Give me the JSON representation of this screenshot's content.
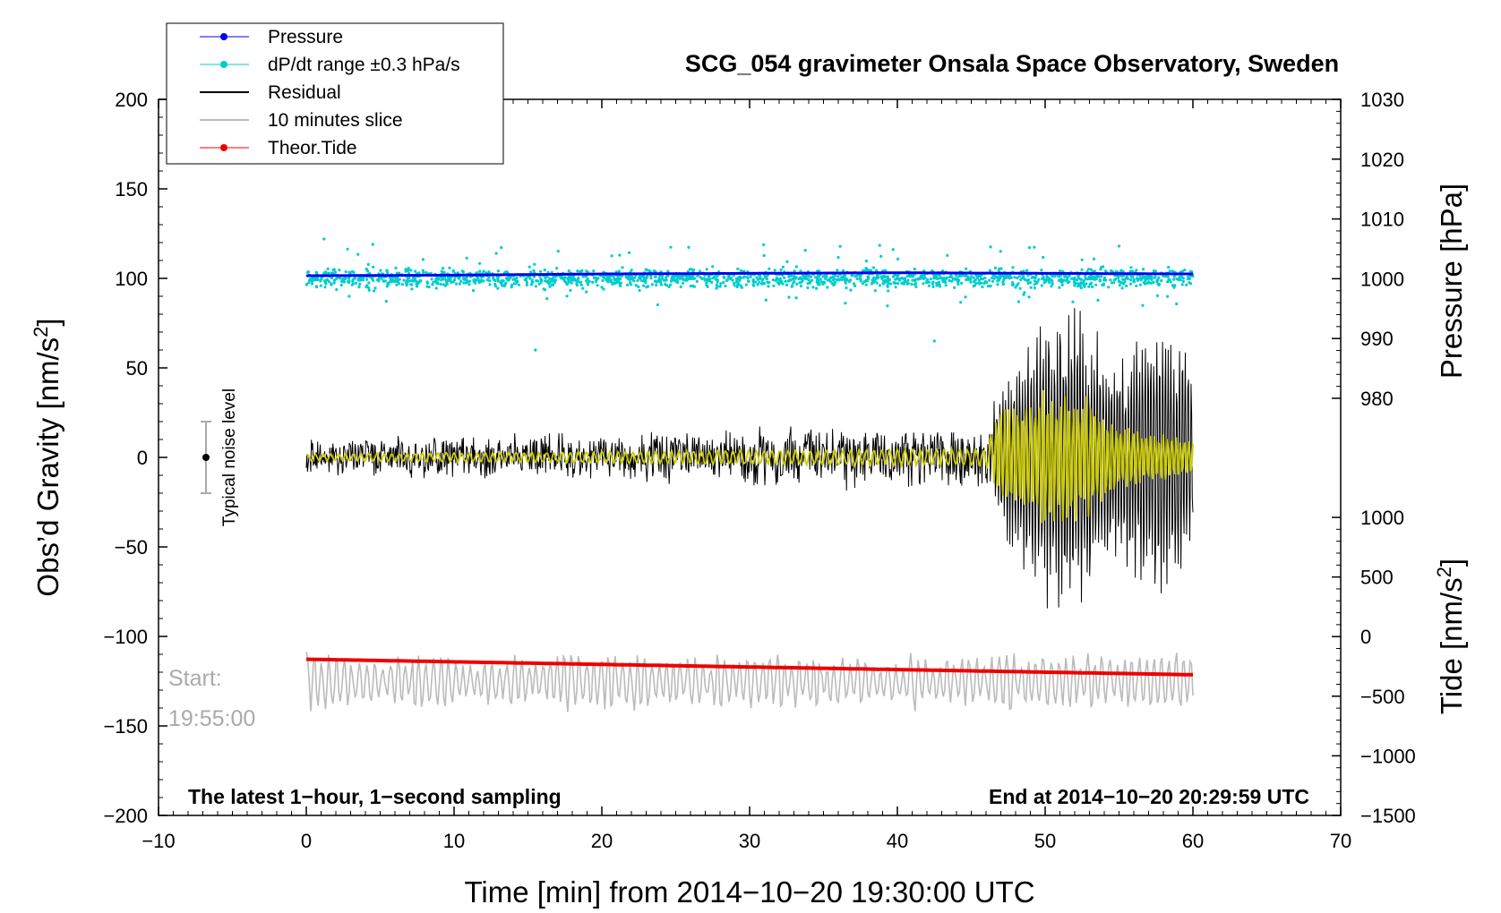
{
  "chart_data": {
    "type": "line",
    "title": "SCG_054 gravimeter Onsala Space Observatory, Sweden",
    "xlabel": "Time [min] from 2014−10−20 19:30:00 UTC",
    "ylabel_left": "Obs’d Gravity [nm/s",
    "ylabel_left_sup": "2",
    "ylabel_left_end": "]",
    "ylabel_right_pressure": "Pressure [hPa]",
    "ylabel_right_tide": "Tide [nm/s",
    "ylabel_right_tide_sup": "2",
    "ylabel_right_tide_end": "]",
    "xlim": [
      -10,
      70
    ],
    "ylim_left": [
      -200,
      200
    ],
    "x_ticks": [
      "−10",
      "0",
      "10",
      "20",
      "30",
      "40",
      "50",
      "60",
      "70"
    ],
    "y_left_ticks": [
      "200",
      "150",
      "100",
      "50",
      "0",
      "−50",
      "−100",
      "−150",
      "−200"
    ],
    "pressure_axis": {
      "range": [
        980,
        1030
      ],
      "ticks": [
        "1030",
        "1020",
        "1010",
        "1000",
        "990",
        "980"
      ]
    },
    "tide_axis": {
      "range": [
        -1500,
        1000
      ],
      "ticks": [
        "1000",
        "500",
        "0",
        "−500",
        "−1000",
        "−1500"
      ]
    },
    "legend": {
      "position": "top-left",
      "entries": [
        {
          "label": "Pressure",
          "color": "#0000ee",
          "marker": true
        },
        {
          "label": "dP/dt range ±0.3 hPa/s",
          "color": "#00cccc",
          "marker": true
        },
        {
          "label": "Residual",
          "color": "#000000",
          "marker": false
        },
        {
          "label": "10 minutes slice",
          "color": "#bbbbbb",
          "marker": false
        },
        {
          "label": "Theor.Tide",
          "color": "#ee0000",
          "marker": true
        }
      ]
    },
    "series": [
      {
        "name": "Pressure",
        "color": "#0000ee",
        "axis": "pressure",
        "x": [
          0,
          10,
          20,
          30,
          40,
          50,
          60
        ],
        "values": [
          1000.5,
          1000.6,
          1000.8,
          1000.9,
          1001.0,
          1000.9,
          1000.8
        ]
      },
      {
        "name": "dP/dt range ±0.3 hPa/s",
        "color": "#00cccc",
        "axis": "left",
        "x_range": [
          0,
          60
        ],
        "center": 100,
        "typical_spread": 3,
        "outlier_range": [
          60,
          125
        ]
      },
      {
        "name": "Residual",
        "color": "#000000",
        "axis": "left",
        "x": [
          0,
          10,
          20,
          30,
          40,
          46,
          47,
          50,
          52.5,
          55,
          57.5,
          60
        ],
        "envelope": [
          12,
          13,
          15,
          18,
          20,
          20,
          45,
          85,
          92,
          55,
          88,
          55
        ]
      },
      {
        "name": "10 minutes slice",
        "color": "#bbbbbb",
        "axis": "left",
        "x_range": [
          0,
          60
        ],
        "center": -125,
        "amplitude_range": [
          7,
          16
        ]
      },
      {
        "name": "Theor.Tide",
        "color": "#ee0000",
        "axis": "tide",
        "x": [
          0,
          60
        ],
        "values": [
          -190,
          -320
        ]
      }
    ],
    "overlay": {
      "color": "#cccc00",
      "description_shown": false,
      "x": [
        0,
        40,
        46,
        47,
        50,
        52.5,
        55,
        60
      ],
      "envelope": [
        2,
        5,
        5,
        30,
        38,
        38,
        18,
        10
      ]
    },
    "noise_bar": {
      "label": "Typical noise level",
      "x": -7,
      "center": 0,
      "half_range": 20
    },
    "annotations": {
      "start_label": "Start:",
      "start_time": "19:55:00",
      "bottom_left": "The latest 1−hour, 1−second sampling",
      "bottom_right": "End at 2014−10−20 20:29:59 UTC"
    },
    "colors": {
      "pressure": "#0000ee",
      "dpdt": "#00cccc",
      "residual": "#000000",
      "slice": "#bbbbbb",
      "tide": "#ee0000",
      "smoothed": "#cccc00"
    }
  }
}
